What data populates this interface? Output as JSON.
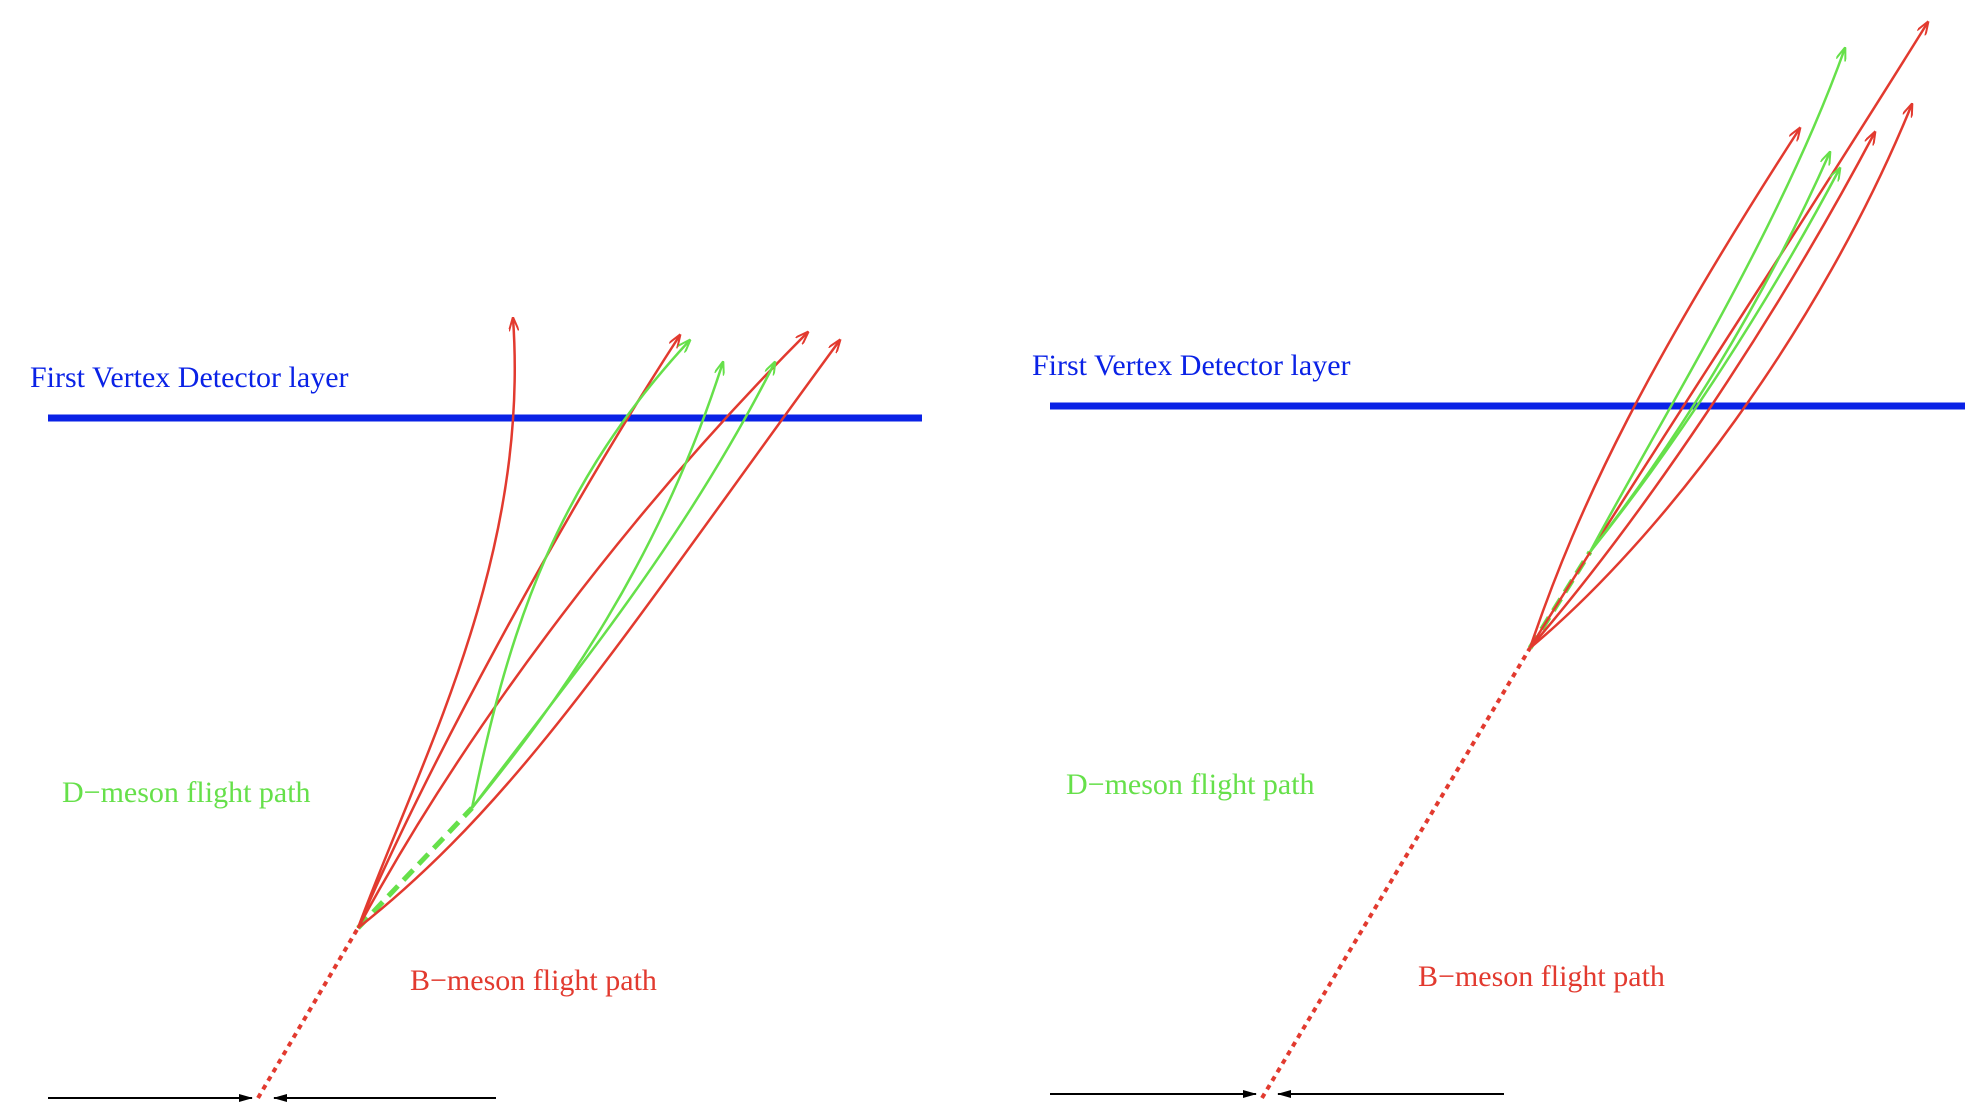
{
  "colors": {
    "layer": "#0a22e6",
    "b_track": "#e23a2f",
    "d_track": "#66e04a",
    "axis": "#000000",
    "background": "#ffffff"
  },
  "panels": [
    {
      "id": "left",
      "layer_label": "First Vertex Detector layer",
      "d_label": "D−meson flight path",
      "b_label": "B−meson flight path"
    },
    {
      "id": "right",
      "layer_label": "First Vertex Detector layer",
      "d_label": "D−meson flight path",
      "b_label": "B−meson flight path"
    }
  ]
}
